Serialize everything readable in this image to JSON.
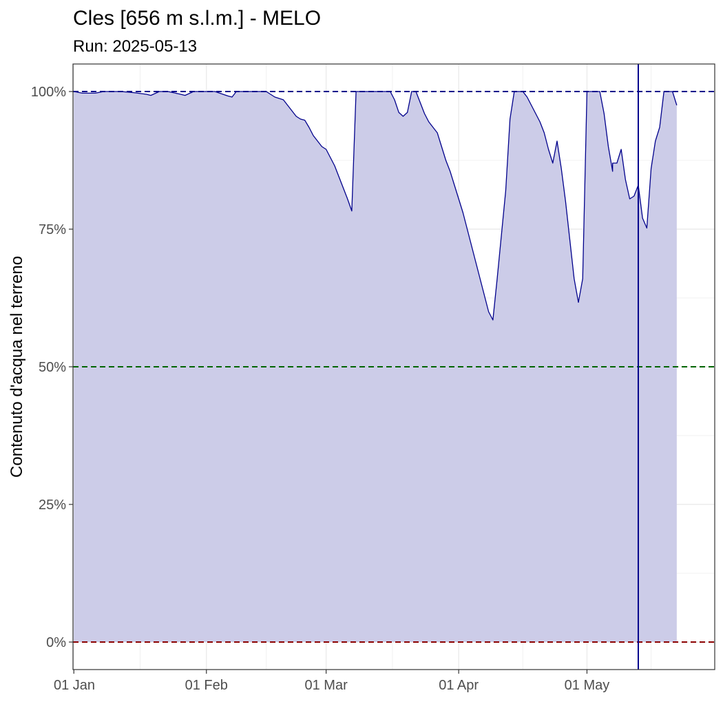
{
  "chart_data": {
    "type": "area",
    "title": "Cles [656 m s.l.m.] - MELO",
    "subtitle": "Run: 2025-05-13",
    "xlabel": "",
    "ylabel": "Contenuto d'acqua nel terreno",
    "x_range": [
      "2025-01-01",
      "2025-05-31"
    ],
    "ylim": [
      -0.05,
      1.05
    ],
    "y_ticks": [
      {
        "value": 0,
        "label": "0%"
      },
      {
        "value": 0.25,
        "label": "25%"
      },
      {
        "value": 0.5,
        "label": "50%"
      },
      {
        "value": 0.75,
        "label": "75%"
      },
      {
        "value": 1,
        "label": "100%"
      }
    ],
    "x_ticks": [
      {
        "date": "2025-01-01",
        "label": "01 Jan"
      },
      {
        "date": "2025-02-01",
        "label": "01 Feb"
      },
      {
        "date": "2025-03-01",
        "label": "01 Mar"
      },
      {
        "date": "2025-04-01",
        "label": "01 Apr"
      },
      {
        "date": "2025-05-01",
        "label": "01 May"
      }
    ],
    "grid": true,
    "reference_lines": [
      {
        "value": 1.0,
        "color": "#00008b",
        "style": "dashed"
      },
      {
        "value": 0.5,
        "color": "#006400",
        "style": "dashed"
      },
      {
        "value": 0.0,
        "color": "#8b0000",
        "style": "dashed"
      }
    ],
    "run_date": "2025-05-13",
    "series": [
      {
        "line_color": "#00008b",
        "fill_color": "#cccce8",
        "points": [
          [
            "2025-01-01",
            1.0
          ],
          [
            "2025-01-03",
            0.997
          ],
          [
            "2025-01-06",
            0.997
          ],
          [
            "2025-01-08",
            1.0
          ],
          [
            "2025-01-12",
            1.0
          ],
          [
            "2025-01-15",
            0.998
          ],
          [
            "2025-01-18",
            0.995
          ],
          [
            "2025-01-19",
            0.993
          ],
          [
            "2025-01-21",
            1.0
          ],
          [
            "2025-01-23",
            1.0
          ],
          [
            "2025-01-26",
            0.995
          ],
          [
            "2025-01-27",
            0.993
          ],
          [
            "2025-01-29",
            1.0
          ],
          [
            "2025-02-01",
            1.0
          ],
          [
            "2025-02-03",
            1.0
          ],
          [
            "2025-02-06",
            0.992
          ],
          [
            "2025-02-07",
            0.99
          ],
          [
            "2025-02-08",
            1.0
          ],
          [
            "2025-02-11",
            1.0
          ],
          [
            "2025-02-15",
            1.0
          ],
          [
            "2025-02-16",
            0.995
          ],
          [
            "2025-02-17",
            0.99
          ],
          [
            "2025-02-19",
            0.985
          ],
          [
            "2025-02-20",
            0.975
          ],
          [
            "2025-02-21",
            0.965
          ],
          [
            "2025-02-22",
            0.955
          ],
          [
            "2025-02-23",
            0.95
          ],
          [
            "2025-02-24",
            0.948
          ],
          [
            "2025-02-25",
            0.935
          ],
          [
            "2025-02-26",
            0.92
          ],
          [
            "2025-02-27",
            0.91
          ],
          [
            "2025-02-28",
            0.9
          ],
          [
            "2025-03-01",
            0.895
          ],
          [
            "2025-03-02",
            0.88
          ],
          [
            "2025-03-03",
            0.865
          ],
          [
            "2025-03-04",
            0.845
          ],
          [
            "2025-03-05",
            0.825
          ],
          [
            "2025-03-06",
            0.805
          ],
          [
            "2025-03-07",
            0.783
          ],
          [
            "2025-03-08",
            1.0
          ],
          [
            "2025-03-10",
            1.0
          ],
          [
            "2025-03-13",
            1.0
          ],
          [
            "2025-03-16",
            1.0
          ],
          [
            "2025-03-17",
            0.985
          ],
          [
            "2025-03-18",
            0.962
          ],
          [
            "2025-03-19",
            0.955
          ],
          [
            "2025-03-20",
            0.962
          ],
          [
            "2025-03-21",
            1.0
          ],
          [
            "2025-03-22",
            1.0
          ],
          [
            "2025-03-23",
            0.98
          ],
          [
            "2025-03-24",
            0.96
          ],
          [
            "2025-03-25",
            0.945
          ],
          [
            "2025-03-26",
            0.935
          ],
          [
            "2025-03-27",
            0.925
          ],
          [
            "2025-03-28",
            0.9
          ],
          [
            "2025-03-29",
            0.875
          ],
          [
            "2025-03-30",
            0.855
          ],
          [
            "2025-03-31",
            0.83
          ],
          [
            "2025-04-01",
            0.805
          ],
          [
            "2025-04-02",
            0.78
          ],
          [
            "2025-04-03",
            0.75
          ],
          [
            "2025-04-04",
            0.72
          ],
          [
            "2025-04-05",
            0.69
          ],
          [
            "2025-04-06",
            0.66
          ],
          [
            "2025-04-07",
            0.63
          ],
          [
            "2025-04-08",
            0.6
          ],
          [
            "2025-04-09",
            0.585
          ],
          [
            "2025-04-10",
            0.66
          ],
          [
            "2025-04-11",
            0.74
          ],
          [
            "2025-04-12",
            0.82
          ],
          [
            "2025-04-13",
            0.95
          ],
          [
            "2025-04-14",
            1.0
          ],
          [
            "2025-04-16",
            1.0
          ],
          [
            "2025-04-17",
            0.99
          ],
          [
            "2025-04-18",
            0.975
          ],
          [
            "2025-04-19",
            0.96
          ],
          [
            "2025-04-20",
            0.945
          ],
          [
            "2025-04-21",
            0.925
          ],
          [
            "2025-04-22",
            0.895
          ],
          [
            "2025-04-23",
            0.87
          ],
          [
            "2025-04-24",
            0.91
          ],
          [
            "2025-04-25",
            0.86
          ],
          [
            "2025-04-26",
            0.8
          ],
          [
            "2025-04-27",
            0.73
          ],
          [
            "2025-04-28",
            0.66
          ],
          [
            "2025-04-29",
            0.617
          ],
          [
            "2025-04-30",
            0.66
          ],
          [
            "2025-05-01",
            1.0
          ],
          [
            "2025-05-03",
            1.0
          ],
          [
            "2025-05-04",
            1.0
          ],
          [
            "2025-05-05",
            0.96
          ],
          [
            "2025-05-06",
            0.9
          ],
          [
            "2025-05-07",
            0.855
          ],
          [
            "2025-05-07",
            0.87
          ],
          [
            "2025-05-08",
            0.87
          ],
          [
            "2025-05-09",
            0.895
          ],
          [
            "2025-05-10",
            0.84
          ],
          [
            "2025-05-11",
            0.805
          ],
          [
            "2025-05-12",
            0.81
          ],
          [
            "2025-05-13",
            0.83
          ],
          [
            "2025-05-14",
            0.77
          ],
          [
            "2025-05-15",
            0.752
          ],
          [
            "2025-05-16",
            0.86
          ],
          [
            "2025-05-17",
            0.91
          ],
          [
            "2025-05-18",
            0.935
          ],
          [
            "2025-05-19",
            1.0
          ],
          [
            "2025-05-20",
            1.0
          ],
          [
            "2025-05-21",
            1.0
          ],
          [
            "2025-05-22",
            0.975
          ]
        ]
      }
    ]
  }
}
